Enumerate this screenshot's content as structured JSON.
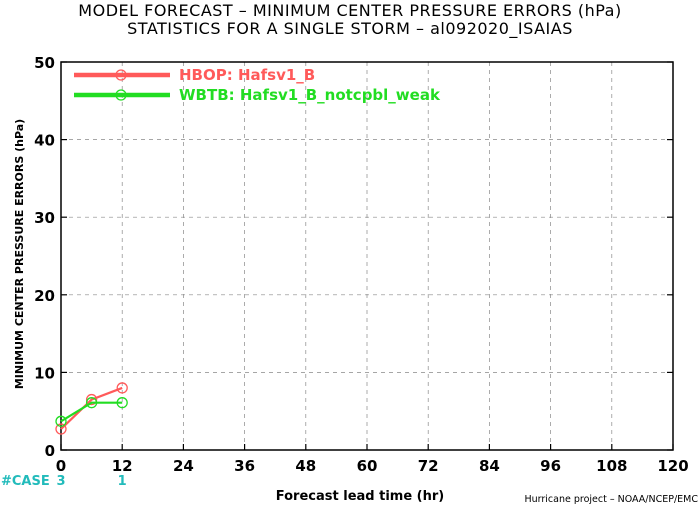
{
  "chart_data": {
    "type": "line",
    "title_line1": "MODEL FORECAST – MINIMUM CENTER PRESSURE ERRORS (hPa)",
    "title_line2": "STATISTICS FOR A SINGLE STORM – al092020_ISAIAS",
    "xlabel": "Forecast lead time (hr)",
    "ylabel": "MINIMUM CENTER PRESSURE ERRORS (hPa)",
    "xlim": [
      0,
      120
    ],
    "ylim": [
      0,
      50
    ],
    "x_ticks": [
      0,
      12,
      24,
      36,
      48,
      60,
      72,
      84,
      96,
      108,
      120
    ],
    "y_ticks": [
      0,
      10,
      20,
      30,
      40,
      50
    ],
    "grid": true,
    "legend_position": "top-left",
    "series": [
      {
        "name": "HBOP: Hafsv1_B",
        "color": "#ff5a5a",
        "x": [
          0,
          6,
          12
        ],
        "y": [
          2.7,
          6.5,
          8.0
        ]
      },
      {
        "name": "WBTB: Hafsv1_B_notcpbl_weak",
        "color": "#22dd22",
        "x": [
          0,
          6,
          12
        ],
        "y": [
          3.7,
          6.1,
          6.1
        ]
      }
    ],
    "case_label": "#CASE",
    "case_color": "#22bbbb",
    "case_counts": [
      {
        "x": 0,
        "label": "3"
      },
      {
        "x": 12,
        "label": "1"
      }
    ],
    "credit": "Hurricane project – NOAA/NCEP/EMC"
  }
}
